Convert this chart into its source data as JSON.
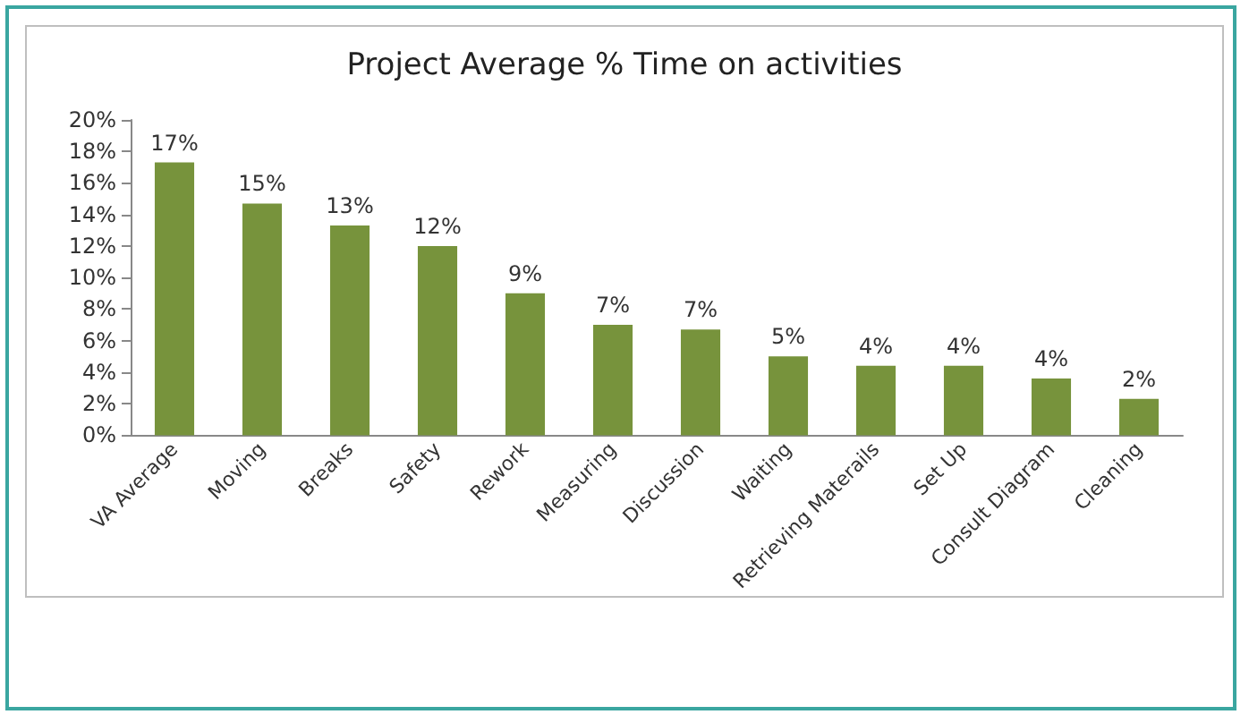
{
  "chart_data": {
    "type": "bar",
    "title": "Project Average % Time on activities",
    "categories": [
      "VA Average",
      "Moving",
      "Breaks",
      "Safety",
      "Rework",
      "Measuring",
      "Discussion",
      "Waiting",
      "Retrieving Materails",
      "Set Up",
      "Consult Diagram",
      "Cleaning"
    ],
    "values": [
      17.3,
      14.7,
      13.3,
      12.0,
      9.0,
      7.0,
      6.7,
      5.0,
      4.4,
      4.4,
      3.6,
      2.3
    ],
    "value_labels": [
      "17%",
      "15%",
      "13%",
      "12%",
      "9%",
      "7%",
      "7%",
      "5%",
      "4%",
      "4%",
      "4%",
      "2%"
    ],
    "color": "#77933c",
    "ylim": [
      0,
      20
    ],
    "yticks": [
      {
        "value": 0,
        "label": "0%"
      },
      {
        "value": 2,
        "label": "2%"
      },
      {
        "value": 4,
        "label": "4%"
      },
      {
        "value": 6,
        "label": "6%"
      },
      {
        "value": 8,
        "label": "8%"
      },
      {
        "value": 10,
        "label": "10%"
      },
      {
        "value": 12,
        "label": "12%"
      },
      {
        "value": 14,
        "label": "14%"
      },
      {
        "value": 16,
        "label": "16%"
      },
      {
        "value": 18,
        "label": "18%"
      },
      {
        "value": 20,
        "label": "20%"
      }
    ],
    "grid": false
  }
}
